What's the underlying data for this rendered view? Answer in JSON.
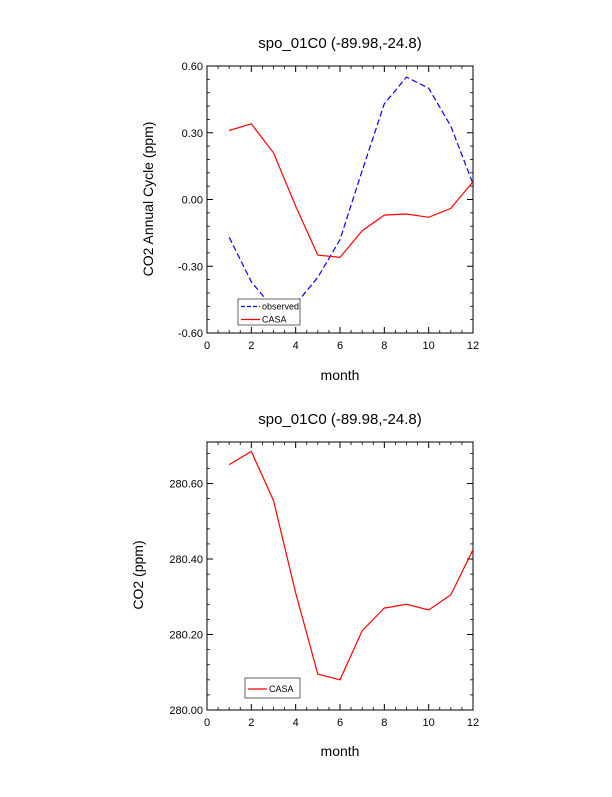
{
  "chart_data": [
    {
      "type": "line",
      "title": "spo_01C0 (-89.98,-24.8)",
      "xlabel": "month",
      "ylabel": "CO2 Annual Cycle (ppm)",
      "xlim": [
        0,
        12
      ],
      "ylim": [
        -0.6,
        0.6
      ],
      "xticks": [
        0,
        2,
        4,
        6,
        8,
        10,
        12
      ],
      "xtick_labels": [
        "0",
        "2",
        "4",
        "6",
        "8",
        "10",
        "12"
      ],
      "yticks": [
        -0.6,
        -0.3,
        0.0,
        0.3,
        0.6
      ],
      "ytick_labels": [
        "-0.60",
        "-0.30",
        "0.00",
        "0.30",
        "0.60"
      ],
      "grid": false,
      "legend_position": "bottom-left",
      "x": [
        1,
        2,
        3,
        4,
        5,
        6,
        7,
        8,
        9,
        10,
        11,
        12
      ],
      "series": [
        {
          "name": "observed",
          "color": "#0000ff",
          "dash": "dashed",
          "values": [
            -0.17,
            -0.37,
            -0.49,
            -0.47,
            -0.35,
            -0.18,
            0.13,
            0.43,
            0.55,
            0.5,
            0.33,
            0.07
          ]
        },
        {
          "name": "CASA",
          "color": "#ff0000",
          "dash": "solid",
          "values": [
            0.31,
            0.34,
            0.21,
            -0.03,
            -0.25,
            -0.26,
            -0.14,
            -0.07,
            -0.065,
            -0.08,
            -0.04,
            0.08
          ]
        }
      ]
    },
    {
      "type": "line",
      "title": "spo_01C0 (-89.98,-24.8)",
      "xlabel": "month",
      "ylabel": "CO2 (ppm)",
      "xlim": [
        0,
        12
      ],
      "ylim": [
        280.0,
        280.71
      ],
      "xticks": [
        0,
        2,
        4,
        6,
        8,
        10,
        12
      ],
      "xtick_labels": [
        "0",
        "2",
        "4",
        "6",
        "8",
        "10",
        "12"
      ],
      "yticks": [
        280.0,
        280.2,
        280.4,
        280.6
      ],
      "ytick_labels": [
        "280.00",
        "280.20",
        "280.40",
        "280.60"
      ],
      "grid": false,
      "legend_position": "bottom-left",
      "x": [
        1,
        2,
        3,
        4,
        5,
        6,
        7,
        8,
        9,
        10,
        11,
        12
      ],
      "series": [
        {
          "name": "CASA",
          "color": "#ff0000",
          "dash": "solid",
          "values": [
            280.65,
            280.685,
            280.555,
            280.31,
            280.095,
            280.08,
            280.21,
            280.27,
            280.28,
            280.265,
            280.305,
            280.425
          ]
        }
      ]
    }
  ]
}
